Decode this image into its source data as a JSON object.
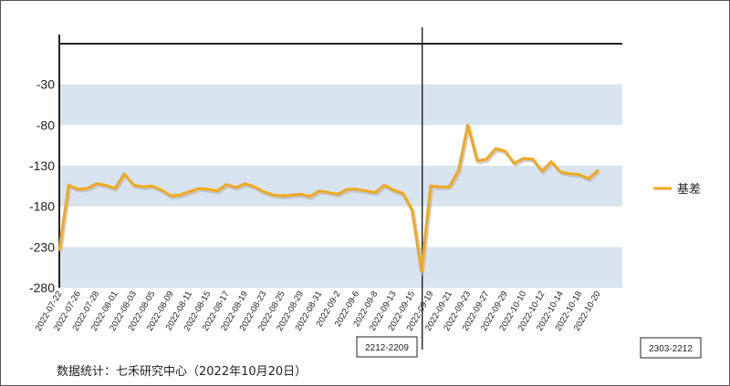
{
  "chart_data": {
    "type": "line",
    "title": "",
    "xlabel": "",
    "ylabel": "",
    "ylim": [
      -280,
      20
    ],
    "y_ticks": [
      -30,
      -80,
      -130,
      -180,
      -230,
      -280
    ],
    "band_color": "#d8e4f0",
    "series": [
      {
        "name": "基差",
        "color": "#f0a81e",
        "values": [
          -233,
          -154,
          -159,
          -158,
          -152,
          -154,
          -158,
          -140,
          -154,
          -156,
          -155,
          -160,
          -167,
          -166,
          -162,
          -158,
          -159,
          -161,
          -153,
          -157,
          -152,
          -156,
          -162,
          -166,
          -167,
          -166,
          -165,
          -168,
          -161,
          -163,
          -165,
          -159,
          -159,
          -161,
          -163,
          -154,
          -160,
          -164,
          -185,
          -260,
          -155,
          -156,
          -156,
          -136,
          -80,
          -124,
          -122,
          -109,
          -112,
          -127,
          -121,
          -122,
          -137,
          -125,
          -138,
          -140,
          -141,
          -146,
          -136
        ]
      }
    ],
    "x_tick_labels": [
      "2022-07-22",
      "2022-07-26",
      "2022-07-28",
      "2022-08-01",
      "2022-08-03",
      "2022-08-05",
      "2022-08-09",
      "2022-08-11",
      "2022-08-15",
      "2022-08-17",
      "2022-08-19",
      "2022-08-23",
      "2022-08-25",
      "2022-08-29",
      "2022-08-31",
      "2022-09-2",
      "2022-09-6",
      "2022-09-8",
      "2022-09-13",
      "2022-09-15",
      "2022-09-19",
      "2022-09-21",
      "2022-09-23",
      "2022-09-27",
      "2022-09-29",
      "2022-10-10",
      "2022-10-12",
      "2022-10-14",
      "2022-10-18",
      "2022-10-20"
    ],
    "contract_labels": [
      "2212-2209",
      "2303-2212"
    ],
    "legend_position": "right"
  },
  "source_note": "数据统计：七禾研究中心（2022年10月20日）"
}
